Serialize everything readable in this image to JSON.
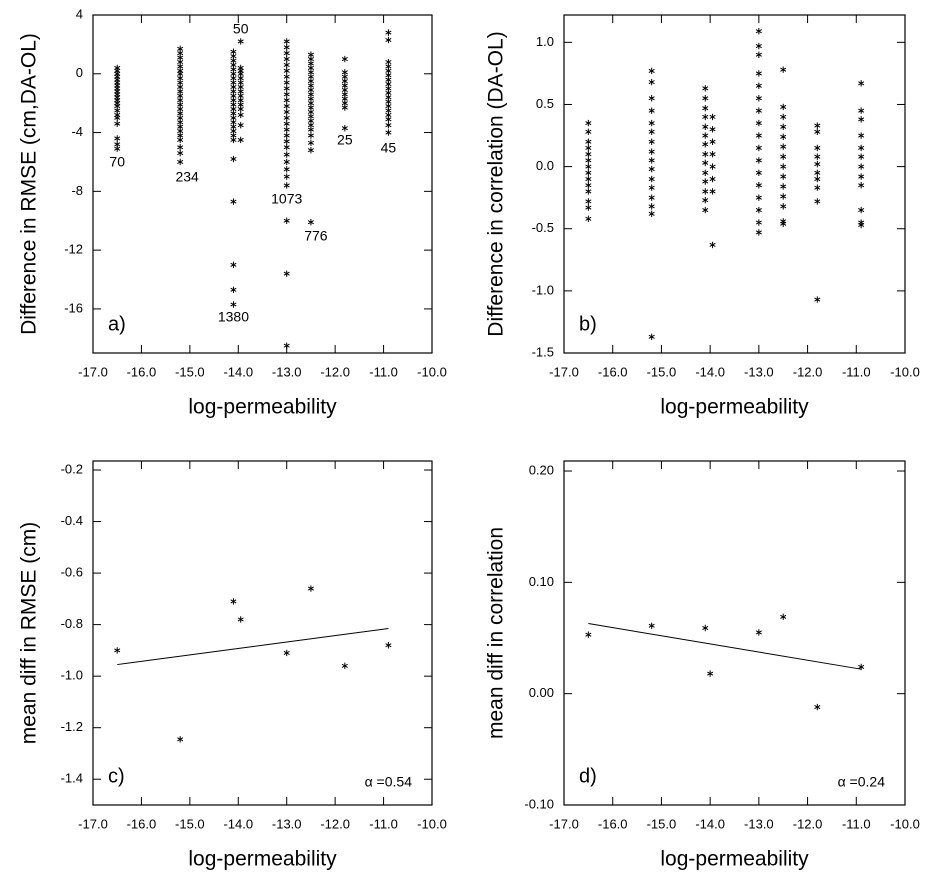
{
  "chart_data": [
    {
      "type": "scatter",
      "panel_label": "a)",
      "x_label": "log-permeability",
      "y_label": "Difference in RMSE (cm,DA-OL)",
      "xlim": [
        -17,
        -10
      ],
      "ylim": [
        -19,
        4
      ],
      "xticks": [
        {
          "value": -17,
          "label": "-17.0"
        },
        {
          "value": -16,
          "label": "-16.0"
        },
        {
          "value": -15,
          "label": "-15.0"
        },
        {
          "value": -14,
          "label": "-14.0"
        },
        {
          "value": -13,
          "label": "-13.0"
        },
        {
          "value": -12,
          "label": "-12.0"
        },
        {
          "value": -11,
          "label": "-11.0"
        },
        {
          "value": -10,
          "label": "-10.0"
        }
      ],
      "yticks": [
        4,
        0,
        -4,
        -8,
        -12,
        -16
      ],
      "groups": [
        {
          "x": -16.5,
          "count": 70,
          "values": [
            0.4,
            0.2,
            0,
            -0.2,
            -0.4,
            -0.6,
            -0.8,
            -1,
            -1.2,
            -1.4,
            -1.6,
            -1.8,
            -2,
            -2.2,
            -2.5,
            -2.8,
            -3,
            -3.4,
            -4.4,
            -4.8,
            -5.1
          ]
        },
        {
          "x": -15.2,
          "count": 234,
          "values": [
            1.7,
            1.4,
            1.1,
            0.8,
            0.5,
            0.2,
            0,
            -0.3,
            -0.6,
            -0.9,
            -1.2,
            -1.5,
            -1.8,
            -2.1,
            -2.4,
            -2.7,
            -3,
            -3.3,
            -3.6,
            -3.9,
            -4.2,
            -4.5,
            -5,
            -5.4,
            -6
          ]
        },
        {
          "x": -14.1,
          "count": 1380,
          "values": [
            1.5,
            1.2,
            0.9,
            0.6,
            0.3,
            0,
            -0.3,
            -0.6,
            -0.9,
            -1.2,
            -1.5,
            -1.8,
            -2.1,
            -2.4,
            -2.7,
            -3,
            -3.3,
            -3.6,
            -3.9,
            -4.2,
            -4.5,
            -5.8,
            -8.7,
            -13,
            -14.7,
            -15.7
          ]
        },
        {
          "x": -13.95,
          "count": 50,
          "values": [
            2.2,
            0.4,
            0.2,
            0,
            -0.3,
            -0.6,
            -0.9,
            -1.2,
            -1.5,
            -1.8,
            -2.1,
            -2.4,
            -2.8,
            -3.5,
            -4.5
          ]
        },
        {
          "x": -13.0,
          "count": 1073,
          "values": [
            2.2,
            1.8,
            1.4,
            1,
            0.6,
            0.2,
            -0.2,
            -0.6,
            -1,
            -1.4,
            -1.8,
            -2.2,
            -2.6,
            -3,
            -3.4,
            -3.8,
            -4.2,
            -4.6,
            -5,
            -5.5,
            -6,
            -6.5,
            -7,
            -7.6,
            -10,
            -13.6,
            -18.5
          ]
        },
        {
          "x": -12.5,
          "count": 776,
          "values": [
            1.3,
            1,
            0.7,
            0.4,
            0.1,
            -0.2,
            -0.5,
            -0.8,
            -1.1,
            -1.4,
            -1.7,
            -2,
            -2.3,
            -2.6,
            -2.9,
            -3.2,
            -3.5,
            -3.8,
            -4.2,
            -4.7,
            -5.2,
            -10.1
          ]
        },
        {
          "x": -11.8,
          "count": 25,
          "values": [
            1,
            0.1,
            -0.2,
            -0.5,
            -0.8,
            -1.1,
            -1.4,
            -1.7,
            -2,
            -2.3,
            -3.7
          ]
        },
        {
          "x": -10.9,
          "count": 45,
          "values": [
            2.8,
            2.3,
            0.8,
            0.5,
            0.2,
            -0.1,
            -0.4,
            -0.7,
            -1,
            -1.3,
            -1.6,
            -1.9,
            -2.2,
            -2.5,
            -2.8,
            -3.1,
            -3.5,
            -4
          ]
        }
      ]
    },
    {
      "type": "scatter",
      "panel_label": "b)",
      "x_label": "log-permeability",
      "y_label": "Difference in correlation (DA-OL)",
      "xlim": [
        -17,
        -10
      ],
      "ylim": [
        -1.5,
        1.22
      ],
      "xticks": [
        {
          "value": -17,
          "label": "-17.0"
        },
        {
          "value": -16,
          "label": "-16.0"
        },
        {
          "value": -15,
          "label": "-15.0"
        },
        {
          "value": -14,
          "label": "-14.0"
        },
        {
          "value": -13,
          "label": "-13.0"
        },
        {
          "value": -12,
          "label": "-12.0"
        },
        {
          "value": -11,
          "label": "-11.0"
        },
        {
          "value": -10,
          "label": "-10.0"
        }
      ],
      "yticks": [
        {
          "value": 1,
          "label": "1.0"
        },
        0.5,
        {
          "value": 0,
          "label": "0.0"
        },
        -0.5,
        {
          "value": -1,
          "label": "-1.0"
        },
        -1.5
      ],
      "groups": [
        {
          "x": -16.5,
          "values": [
            0.35,
            0.28,
            0.2,
            0.15,
            0.1,
            0.05,
            0,
            -0.05,
            -0.1,
            -0.15,
            -0.2,
            -0.28,
            -0.33,
            -0.42
          ]
        },
        {
          "x": -15.2,
          "values": [
            0.77,
            0.68,
            0.55,
            0.45,
            0.35,
            0.28,
            0.2,
            0.12,
            0.05,
            -0.02,
            -0.1,
            -0.17,
            -0.25,
            -0.32,
            -0.38,
            -1.37
          ]
        },
        {
          "x": -14.1,
          "values": [
            0.63,
            0.55,
            0.47,
            0.4,
            0.32,
            0.25,
            0.18,
            0.1,
            0.03,
            -0.05,
            -0.12,
            -0.2,
            -0.27,
            -0.35
          ]
        },
        {
          "x": -13.95,
          "values": [
            0.4,
            0.3,
            0.2,
            0.1,
            0,
            -0.1,
            -0.2,
            -0.63
          ]
        },
        {
          "x": -13.0,
          "values": [
            1.09,
            0.97,
            0.9,
            0.75,
            0.65,
            0.55,
            0.45,
            0.35,
            0.25,
            0.15,
            0.05,
            -0.05,
            -0.15,
            -0.25,
            -0.35,
            -0.45,
            -0.53
          ]
        },
        {
          "x": -12.5,
          "values": [
            0.78,
            0.48,
            0.4,
            0.32,
            0.24,
            0.16,
            0.08,
            0,
            -0.08,
            -0.16,
            -0.24,
            -0.32,
            -0.44,
            -0.46
          ]
        },
        {
          "x": -11.8,
          "values": [
            0.33,
            0.28,
            0.15,
            0.08,
            0.02,
            -0.05,
            -0.1,
            -0.17,
            -0.28,
            -1.07
          ]
        },
        {
          "x": -10.9,
          "values": [
            0.67,
            0.45,
            0.38,
            0.25,
            0.15,
            0.08,
            0,
            -0.08,
            -0.15,
            -0.35,
            -0.45,
            -0.47
          ]
        }
      ]
    },
    {
      "type": "scatter",
      "panel_label": "c)",
      "x_label": "log-permeability",
      "y_label": "mean diff in RMSE (cm)",
      "annotation": "α =0.54",
      "xlim": [
        -17,
        -10
      ],
      "ylim": [
        -1.5,
        -0.165
      ],
      "xticks": [
        {
          "value": -17,
          "label": "-17.0"
        },
        {
          "value": -16,
          "label": "-16.0"
        },
        {
          "value": -15,
          "label": "-15.0"
        },
        {
          "value": -14,
          "label": "-14.0"
        },
        {
          "value": -13,
          "label": "-13.0"
        },
        {
          "value": -12,
          "label": "-12.0"
        },
        {
          "value": -11,
          "label": "-11.0"
        },
        {
          "value": -10,
          "label": "-10.0"
        }
      ],
      "yticks": [
        -0.2,
        -0.4,
        -0.6,
        -0.8,
        {
          "value": -1,
          "label": "-1.0"
        },
        -1.2,
        -1.4
      ],
      "x": [
        -16.5,
        -15.2,
        -14.1,
        -13.95,
        -13.0,
        -12.5,
        -11.8,
        -10.9
      ],
      "values": [
        -0.9,
        -1.245,
        -0.71,
        -0.78,
        -0.91,
        -0.66,
        -0.96,
        -0.88
      ],
      "fit": {
        "x": [
          -16.5,
          -10.9
        ],
        "y": [
          -0.955,
          -0.815
        ]
      }
    },
    {
      "type": "scatter",
      "panel_label": "d)",
      "x_label": "log-permeability",
      "y_label": "mean diff in correlation",
      "annotation": "α =0.24",
      "xlim": [
        -17,
        -10
      ],
      "ylim": [
        -0.1,
        0.209
      ],
      "xticks": [
        {
          "value": -17,
          "label": "-17.0"
        },
        {
          "value": -16,
          "label": "-16.0"
        },
        {
          "value": -15,
          "label": "-15.0"
        },
        {
          "value": -14,
          "label": "-14.0"
        },
        {
          "value": -13,
          "label": "-13.0"
        },
        {
          "value": -12,
          "label": "-12.0"
        },
        {
          "value": -11,
          "label": "-11.0"
        },
        {
          "value": -10,
          "label": "-10.0"
        }
      ],
      "yticks": [
        {
          "value": 0.2,
          "label": "0.20"
        },
        {
          "value": 0.1,
          "label": "0.10"
        },
        {
          "value": 0,
          "label": "0.00"
        },
        {
          "value": -0.1,
          "label": "-0.10"
        }
      ],
      "x": [
        -16.5,
        -15.2,
        -14.1,
        -14.0,
        -13.0,
        -12.5,
        -11.8,
        -10.9
      ],
      "values": [
        0.053,
        0.061,
        0.059,
        0.018,
        0.055,
        0.069,
        -0.012,
        0.024
      ],
      "fit": {
        "x": [
          -16.5,
          -10.9
        ],
        "y": [
          0.063,
          0.022
        ]
      }
    }
  ]
}
